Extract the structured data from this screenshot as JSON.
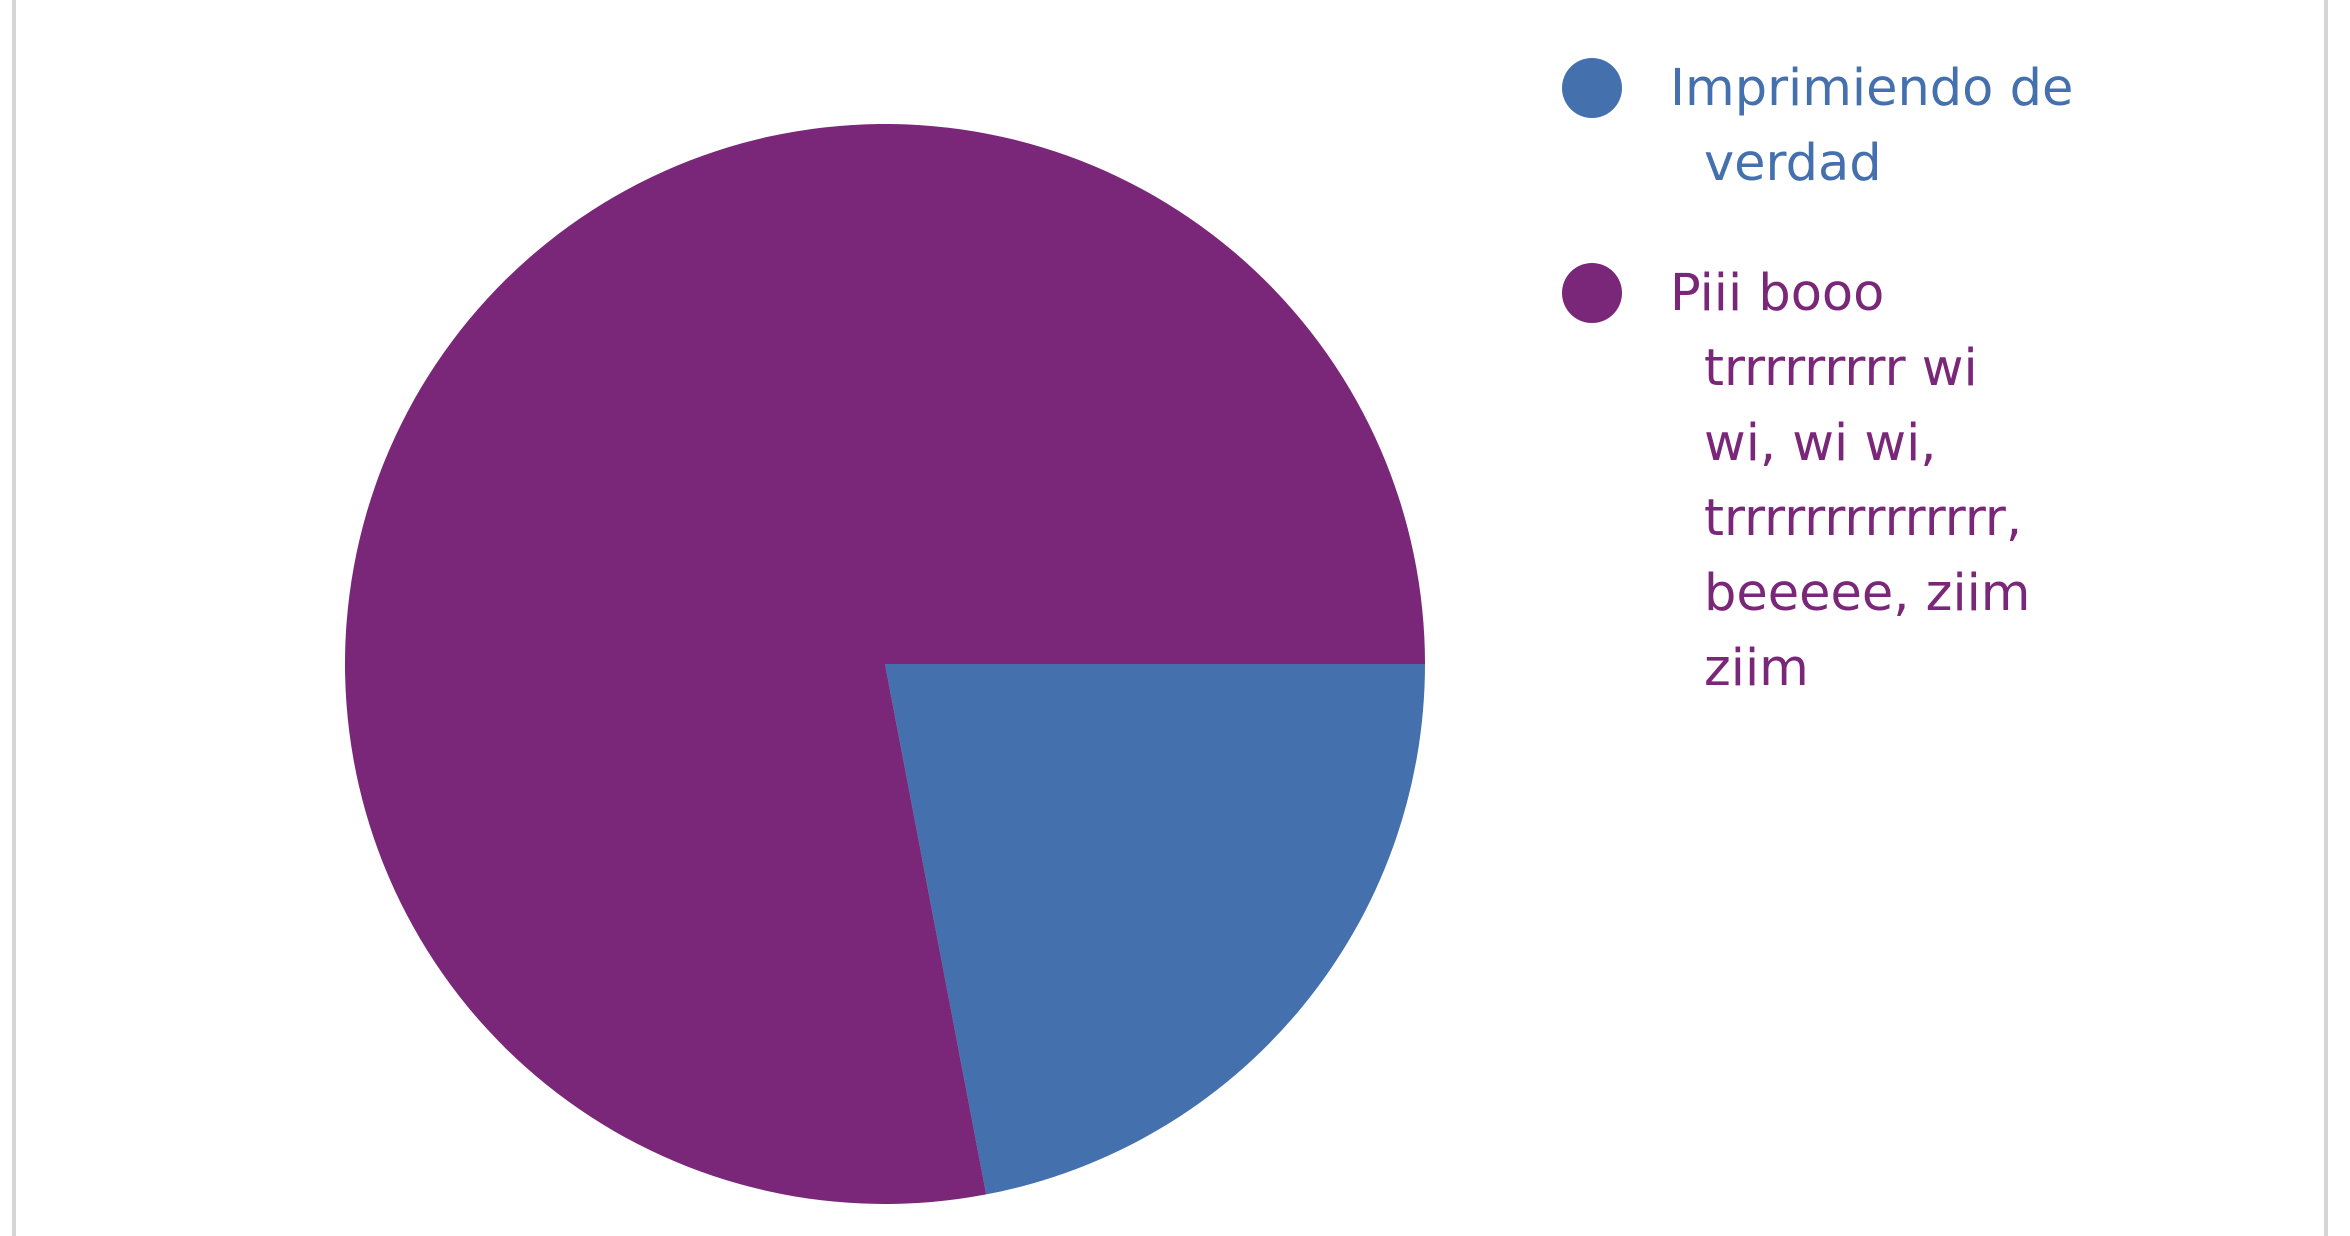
{
  "chart_data": {
    "type": "pie",
    "title": "",
    "legend_position": "right",
    "slices": [
      {
        "label": "Imprimiendo de verdad",
        "value": 22,
        "color": "#4470ad"
      },
      {
        "label": "Piii booo trrrrrrrrr wi wi, wi wi, trrrrrrrrrrrrrr, beeeee, ziim ziim",
        "value": 78,
        "color": "#7a2779"
      }
    ],
    "legend": [
      {
        "lines": [
          "Imprimiendo de",
          "verdad"
        ],
        "color": "#4470ad"
      },
      {
        "lines": [
          "Piii booo",
          "trrrrrrrrr wi",
          "wi, wi wi,",
          "trrrrrrrrrrrrrr,",
          "beeeee, ziim",
          "ziim"
        ],
        "color": "#7a2779"
      }
    ]
  }
}
